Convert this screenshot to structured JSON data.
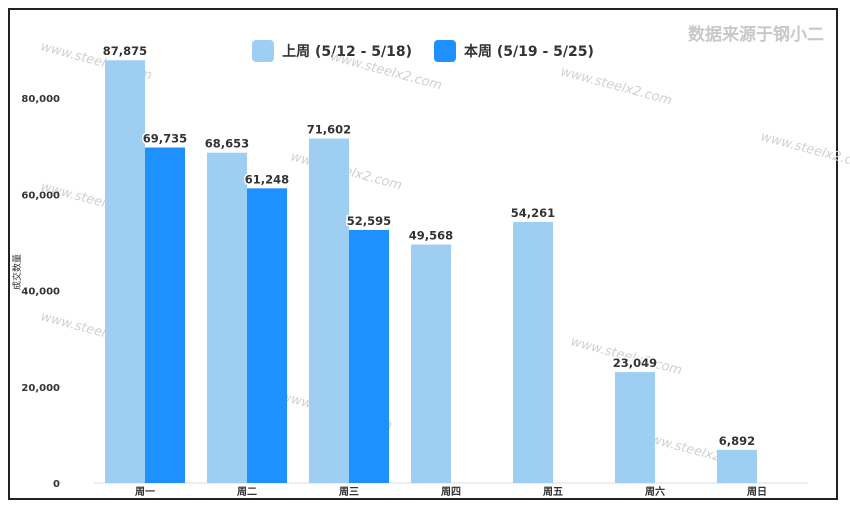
{
  "watermark": "数据来源于钢小二",
  "chart_data": {
    "type": "bar",
    "ylabel": "成交数量",
    "xlabel": "",
    "ylim": [
      0,
      90000
    ],
    "yticks": [
      0,
      20000,
      40000,
      60000,
      80000
    ],
    "ytick_labels": [
      "0",
      "20,000",
      "40,000",
      "60,000",
      "80,000"
    ],
    "categories": [
      "周一",
      "周二",
      "周三",
      "周四",
      "周五",
      "周六",
      "周日"
    ],
    "series": [
      {
        "name": "上周 (5/12 - 5/18)",
        "color": "#9ecff3",
        "values": [
          87875,
          68653,
          71602,
          49568,
          54261,
          23049,
          6892
        ],
        "labels": [
          "87,875",
          "68,653",
          "71,602",
          "49,568",
          "54,261",
          "23,049",
          "6,892"
        ]
      },
      {
        "name": "本周 (5/19 - 5/25)",
        "color": "#1e90ff",
        "values": [
          69735,
          61248,
          52595,
          null,
          null,
          null,
          null
        ],
        "labels": [
          "69,735",
          "61,248",
          "52,595",
          "",
          "",
          "",
          ""
        ]
      }
    ],
    "grid": false,
    "legend_position": "top"
  }
}
